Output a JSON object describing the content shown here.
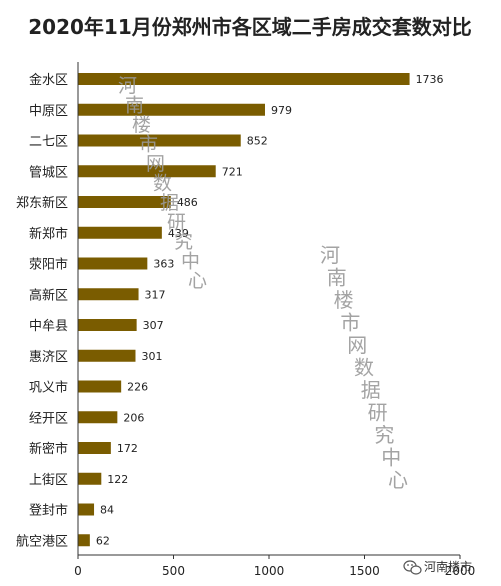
{
  "chart_data": {
    "type": "bar",
    "orientation": "horizontal",
    "title": "2020年11月份郑州市各区域二手房成交套数对比",
    "categories": [
      "金水区",
      "中原区",
      "二七区",
      "管城区",
      "郑东新区",
      "新郑市",
      "荥阳市",
      "高新区",
      "中牟县",
      "惠济区",
      "巩义市",
      "经开区",
      "新密市",
      "上街区",
      "登封市",
      "航空港区"
    ],
    "values": [
      1736,
      979,
      852,
      721,
      486,
      439,
      363,
      317,
      307,
      301,
      226,
      206,
      172,
      122,
      84,
      62
    ],
    "x_ticks": [
      "0",
      "500",
      "1000",
      "1500",
      "2000"
    ],
    "xlim": [
      0,
      2000
    ],
    "grid": false,
    "legend": "none",
    "bar_color": "#7a5c00"
  },
  "watermarks": [
    "河南楼市网数据研究中心",
    "河南楼市网数据研究中心"
  ],
  "logo": {
    "text": "河南楼市",
    "icon": "wechat-icon"
  }
}
